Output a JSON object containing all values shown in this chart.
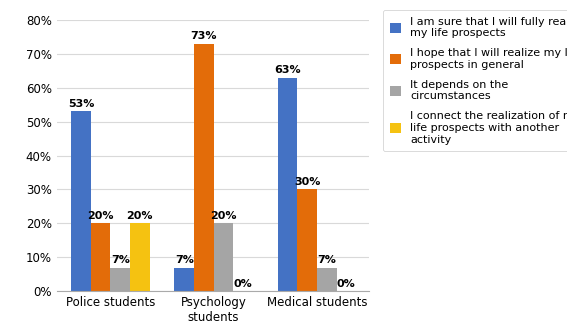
{
  "categories": [
    "Police students",
    "Psychology\nstudents",
    "Medical students"
  ],
  "series": [
    {
      "label": "I am sure that I will fully realize\nmy life prospects",
      "values": [
        53,
        7,
        63
      ],
      "color": "#4472C4"
    },
    {
      "label": "I hope that I will realize my life\nprospects in general",
      "values": [
        20,
        73,
        30
      ],
      "color": "#E36C09"
    },
    {
      "label": "It depends on the\ncircumstances",
      "values": [
        7,
        20,
        7
      ],
      "color": "#A5A5A5"
    },
    {
      "label": "I connect the realization of my\nlife prospects with another\nactivity",
      "values": [
        20,
        0,
        0
      ],
      "color": "#F5C211"
    }
  ],
  "ylim": [
    0,
    80
  ],
  "yticks": [
    0,
    10,
    20,
    30,
    40,
    50,
    60,
    70,
    80
  ],
  "bar_width": 0.19,
  "group_centers": [
    0.42,
    1.42,
    2.42
  ],
  "background_color": "#FFFFFF",
  "grid_color": "#D9D9D9",
  "label_fontsize": 8,
  "tick_fontsize": 8.5,
  "legend_fontsize": 8
}
